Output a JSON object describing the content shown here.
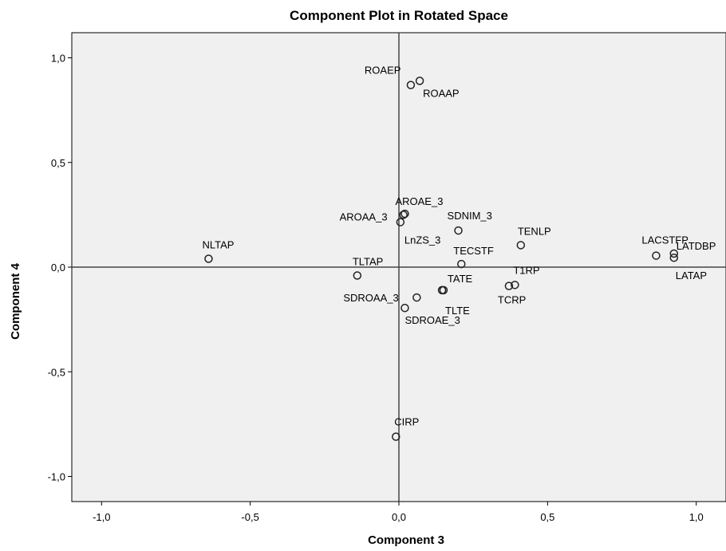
{
  "chart_data": {
    "type": "scatter",
    "title": "Component Plot in Rotated Space",
    "xlabel": "Component 3",
    "ylabel": "Component 4",
    "xlim": [
      -1.1,
      1.1
    ],
    "ylim": [
      -1.12,
      1.12
    ],
    "x_ticks": [
      {
        "value": -1.0,
        "label": "-1,0"
      },
      {
        "value": -0.5,
        "label": "-0,5"
      },
      {
        "value": 0.0,
        "label": "0,0"
      },
      {
        "value": 0.5,
        "label": "0,5"
      },
      {
        "value": 1.0,
        "label": "1,0"
      }
    ],
    "y_ticks": [
      {
        "value": 1.0,
        "label": "1,0"
      },
      {
        "value": 0.5,
        "label": "0,5"
      },
      {
        "value": 0.0,
        "label": "0,0"
      },
      {
        "value": -0.5,
        "label": "-0,5"
      },
      {
        "value": -1.0,
        "label": "-1,0"
      }
    ],
    "reference_lines": {
      "x": 0.0,
      "y": 0.0
    },
    "colors": {
      "plot_background": "#f0f0f0",
      "marker": "#222222",
      "axis": "#444444"
    },
    "points": [
      {
        "label": "ROAEP",
        "x": 0.04,
        "y": 0.87
      },
      {
        "label": "ROAAP",
        "x": 0.07,
        "y": 0.89
      },
      {
        "label": "AROAA_3",
        "x": 0.015,
        "y": 0.25
      },
      {
        "label": "AROAE_3",
        "x": 0.02,
        "y": 0.255
      },
      {
        "label": "LnZS_3",
        "x": 0.005,
        "y": 0.215
      },
      {
        "label": "SDNIM_3",
        "x": 0.2,
        "y": 0.175
      },
      {
        "label": "TENLP",
        "x": 0.41,
        "y": 0.105
      },
      {
        "label": "NLTAP",
        "x": -0.64,
        "y": 0.04
      },
      {
        "label": "TECSTF",
        "x": 0.21,
        "y": 0.015
      },
      {
        "label": "TLTAP",
        "x": -0.14,
        "y": -0.04
      },
      {
        "label": "T1RP",
        "x": 0.39,
        "y": -0.085
      },
      {
        "label": "TCRP",
        "x": 0.37,
        "y": -0.09
      },
      {
        "label": "TATE",
        "x": 0.15,
        "y": -0.11
      },
      {
        "label": "TLTE",
        "x": 0.145,
        "y": -0.11
      },
      {
        "label": "SDROAA_3",
        "x": 0.06,
        "y": -0.145
      },
      {
        "label": "SDROAE_3",
        "x": 0.02,
        "y": -0.195
      },
      {
        "label": "LACSTFP",
        "x": 0.865,
        "y": 0.055
      },
      {
        "label": "LATDBP",
        "x": 0.925,
        "y": 0.045
      },
      {
        "label": "LATAP",
        "x": 0.925,
        "y": 0.065
      },
      {
        "label": "CIRP",
        "x": -0.01,
        "y": -0.81
      }
    ]
  }
}
